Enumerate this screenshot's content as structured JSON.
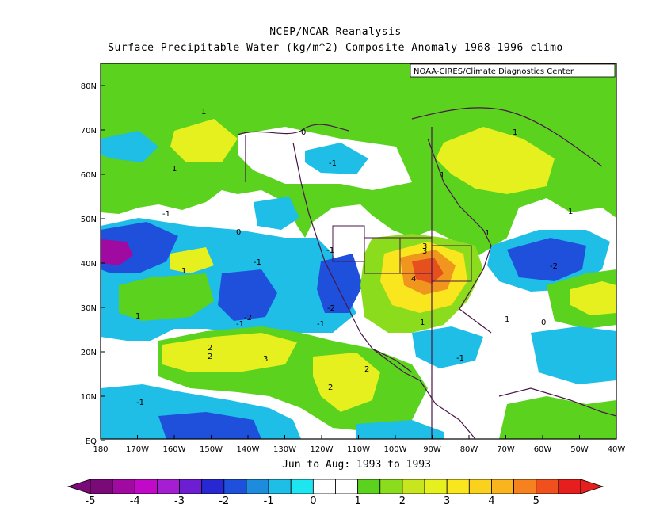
{
  "header": {
    "title": "NCEP/NCAR Reanalysis",
    "subtitle": "Surface Precipitable Water (kg/m^2) Composite Anomaly 1968-1996 climo"
  },
  "credit": "NOAA-CIRES/Climate Diagnostics Center",
  "period_label": "Jun to Aug: 1993 to 1993",
  "map": {
    "lat_labels": [
      "80N",
      "70N",
      "60N",
      "50N",
      "40N",
      "30N",
      "20N",
      "10N",
      "EQ"
    ],
    "lon_labels": [
      "180",
      "170W",
      "160W",
      "150W",
      "140W",
      "130W",
      "120W",
      "110W",
      "100W",
      "90W",
      "80W",
      "70W",
      "60W",
      "50W",
      "40W"
    ],
    "contour_labels": {
      "l1": "1",
      "l2": "1",
      "l3": "1",
      "l4": "1",
      "l5": "1",
      "l6": "1",
      "l7": "1",
      "l8": "-1",
      "l9": "-1",
      "l10": "-1",
      "l11": "-1",
      "l12": "-1",
      "l13": "-1",
      "l14": "-2",
      "l15": "-2",
      "l16": "-2",
      "l17": "2",
      "l18": "2",
      "l19": "3",
      "l20": "2",
      "l21": "2",
      "l22": "4",
      "l23": "3",
      "l24": "3",
      "l25": "1",
      "l26": "1",
      "l27": "1",
      "l28": "-1",
      "l29": "-1",
      "l30": "0",
      "l31": "0",
      "l32": "0"
    }
  },
  "colorbar": {
    "labels": [
      "-5",
      "-4",
      "-3",
      "-2",
      "-1",
      "0",
      "1",
      "2",
      "3",
      "4",
      "5"
    ],
    "colors": [
      "#7a0a78",
      "#a00aa0",
      "#c00ac8",
      "#a61ed2",
      "#6e1ed2",
      "#2828d2",
      "#1e50dc",
      "#1e8cdc",
      "#1ebee6",
      "#1ee6f0",
      "#ffffff",
      "#ffffff",
      "#5ad21e",
      "#8cdc1e",
      "#c8e61e",
      "#e6f01e",
      "#fae61e",
      "#fad21e",
      "#fab41e",
      "#f5821e",
      "#f0501e",
      "#e61e1e"
    ]
  },
  "palette": {
    "pos1": "#5ad21e",
    "pos1b": "#8cdc1e",
    "pos2": "#e6f01e",
    "pos2b": "#fae61e",
    "pos3": "#fad21e",
    "pos4": "#f0961e",
    "pos5": "#e6501e",
    "neg1": "#1ebee6",
    "neg1b": "#1e8cdc",
    "neg2": "#1e50dc",
    "neg3": "#2828d2",
    "neg4": "#6e1ed2",
    "neg5": "#a00aa0",
    "coast": "#4a1548"
  }
}
